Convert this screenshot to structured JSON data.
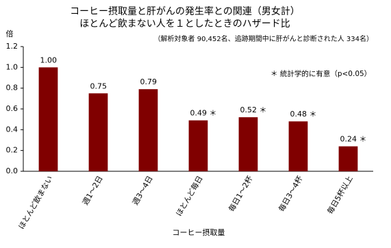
{
  "chart_data": {
    "type": "bar",
    "title": "コーヒー摂取量と肝がんの発生率との関連（男女計）",
    "subtitle": "ほとんど飲まない人を１としたときのハザード比",
    "note": "（解析対象者 90,452名、追跡期間中に肝がんと診断された人 334名）",
    "annotation": "＊ 統計学的に有意（p<0.05）",
    "y_label": "倍",
    "x_label": "コーヒー摂取量",
    "categories": [
      "ほとんど飲まない",
      "週1～2日",
      "週3～4日",
      "ほとんど毎日",
      "毎日1～2杯",
      "毎日3～4杯",
      "毎日5杯以上"
    ],
    "values": [
      1.0,
      0.75,
      0.79,
      0.49,
      0.52,
      0.48,
      0.24
    ],
    "value_labels": [
      "1.00",
      "0.75",
      "0.79",
      "0.49 ＊",
      "0.52 ＊",
      "0.48 ＊",
      "0.24 ＊"
    ],
    "color": "#800000",
    "ylim": [
      0,
      1.2
    ],
    "yticks": [
      {
        "value": 0,
        "label": "0.0"
      },
      0.2,
      0.4,
      0.6,
      0.8,
      {
        "value": 1,
        "label": "1.0"
      },
      1.2
    ],
    "grid": false
  }
}
